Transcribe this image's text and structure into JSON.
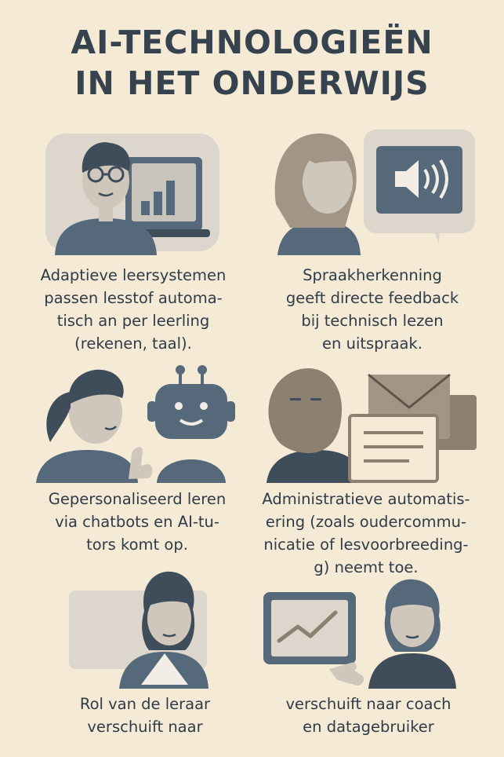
{
  "title": {
    "line1": "AI-TECHNOLOGIEËN",
    "line2": "IN HET ONDERWIJS"
  },
  "cards": [
    {
      "icon": "student-laptop-icon",
      "lines": [
        "Adaptieve leersystemen",
        "passen lesstof automa-",
        "tisch an per leerling",
        "(rekenen, taal)."
      ]
    },
    {
      "icon": "speech-speaker-icon",
      "lines": [
        "Spraakherkenning",
        "geeft directe feedback",
        "bij technisch lezen",
        "en uitspraak."
      ]
    },
    {
      "icon": "girl-robot-icon",
      "lines": [
        "Gepersonaliseerd leren",
        "via chatbots en AI-tu-",
        "tors komt op."
      ]
    },
    {
      "icon": "man-envelope-icon",
      "lines": [
        "Administratieve automatis-",
        "ering (zoals oudercommu-",
        "nicatie of lesvoorbreeding-",
        "g) neemt toe."
      ]
    },
    {
      "icon": "teacher-board-icon",
      "lines": [
        "Rol van de leraar",
        "verschuift naar"
      ]
    },
    {
      "icon": "coach-chart-icon",
      "lines": [
        "verschuift naar coach",
        "en datagebruiker"
      ]
    }
  ],
  "colors": {
    "background": "#f4ead6",
    "slate": "#56697a",
    "skin_light": "#d7cfc3",
    "hair_dark": "#4b5764",
    "panel": "#dcd6cc"
  }
}
